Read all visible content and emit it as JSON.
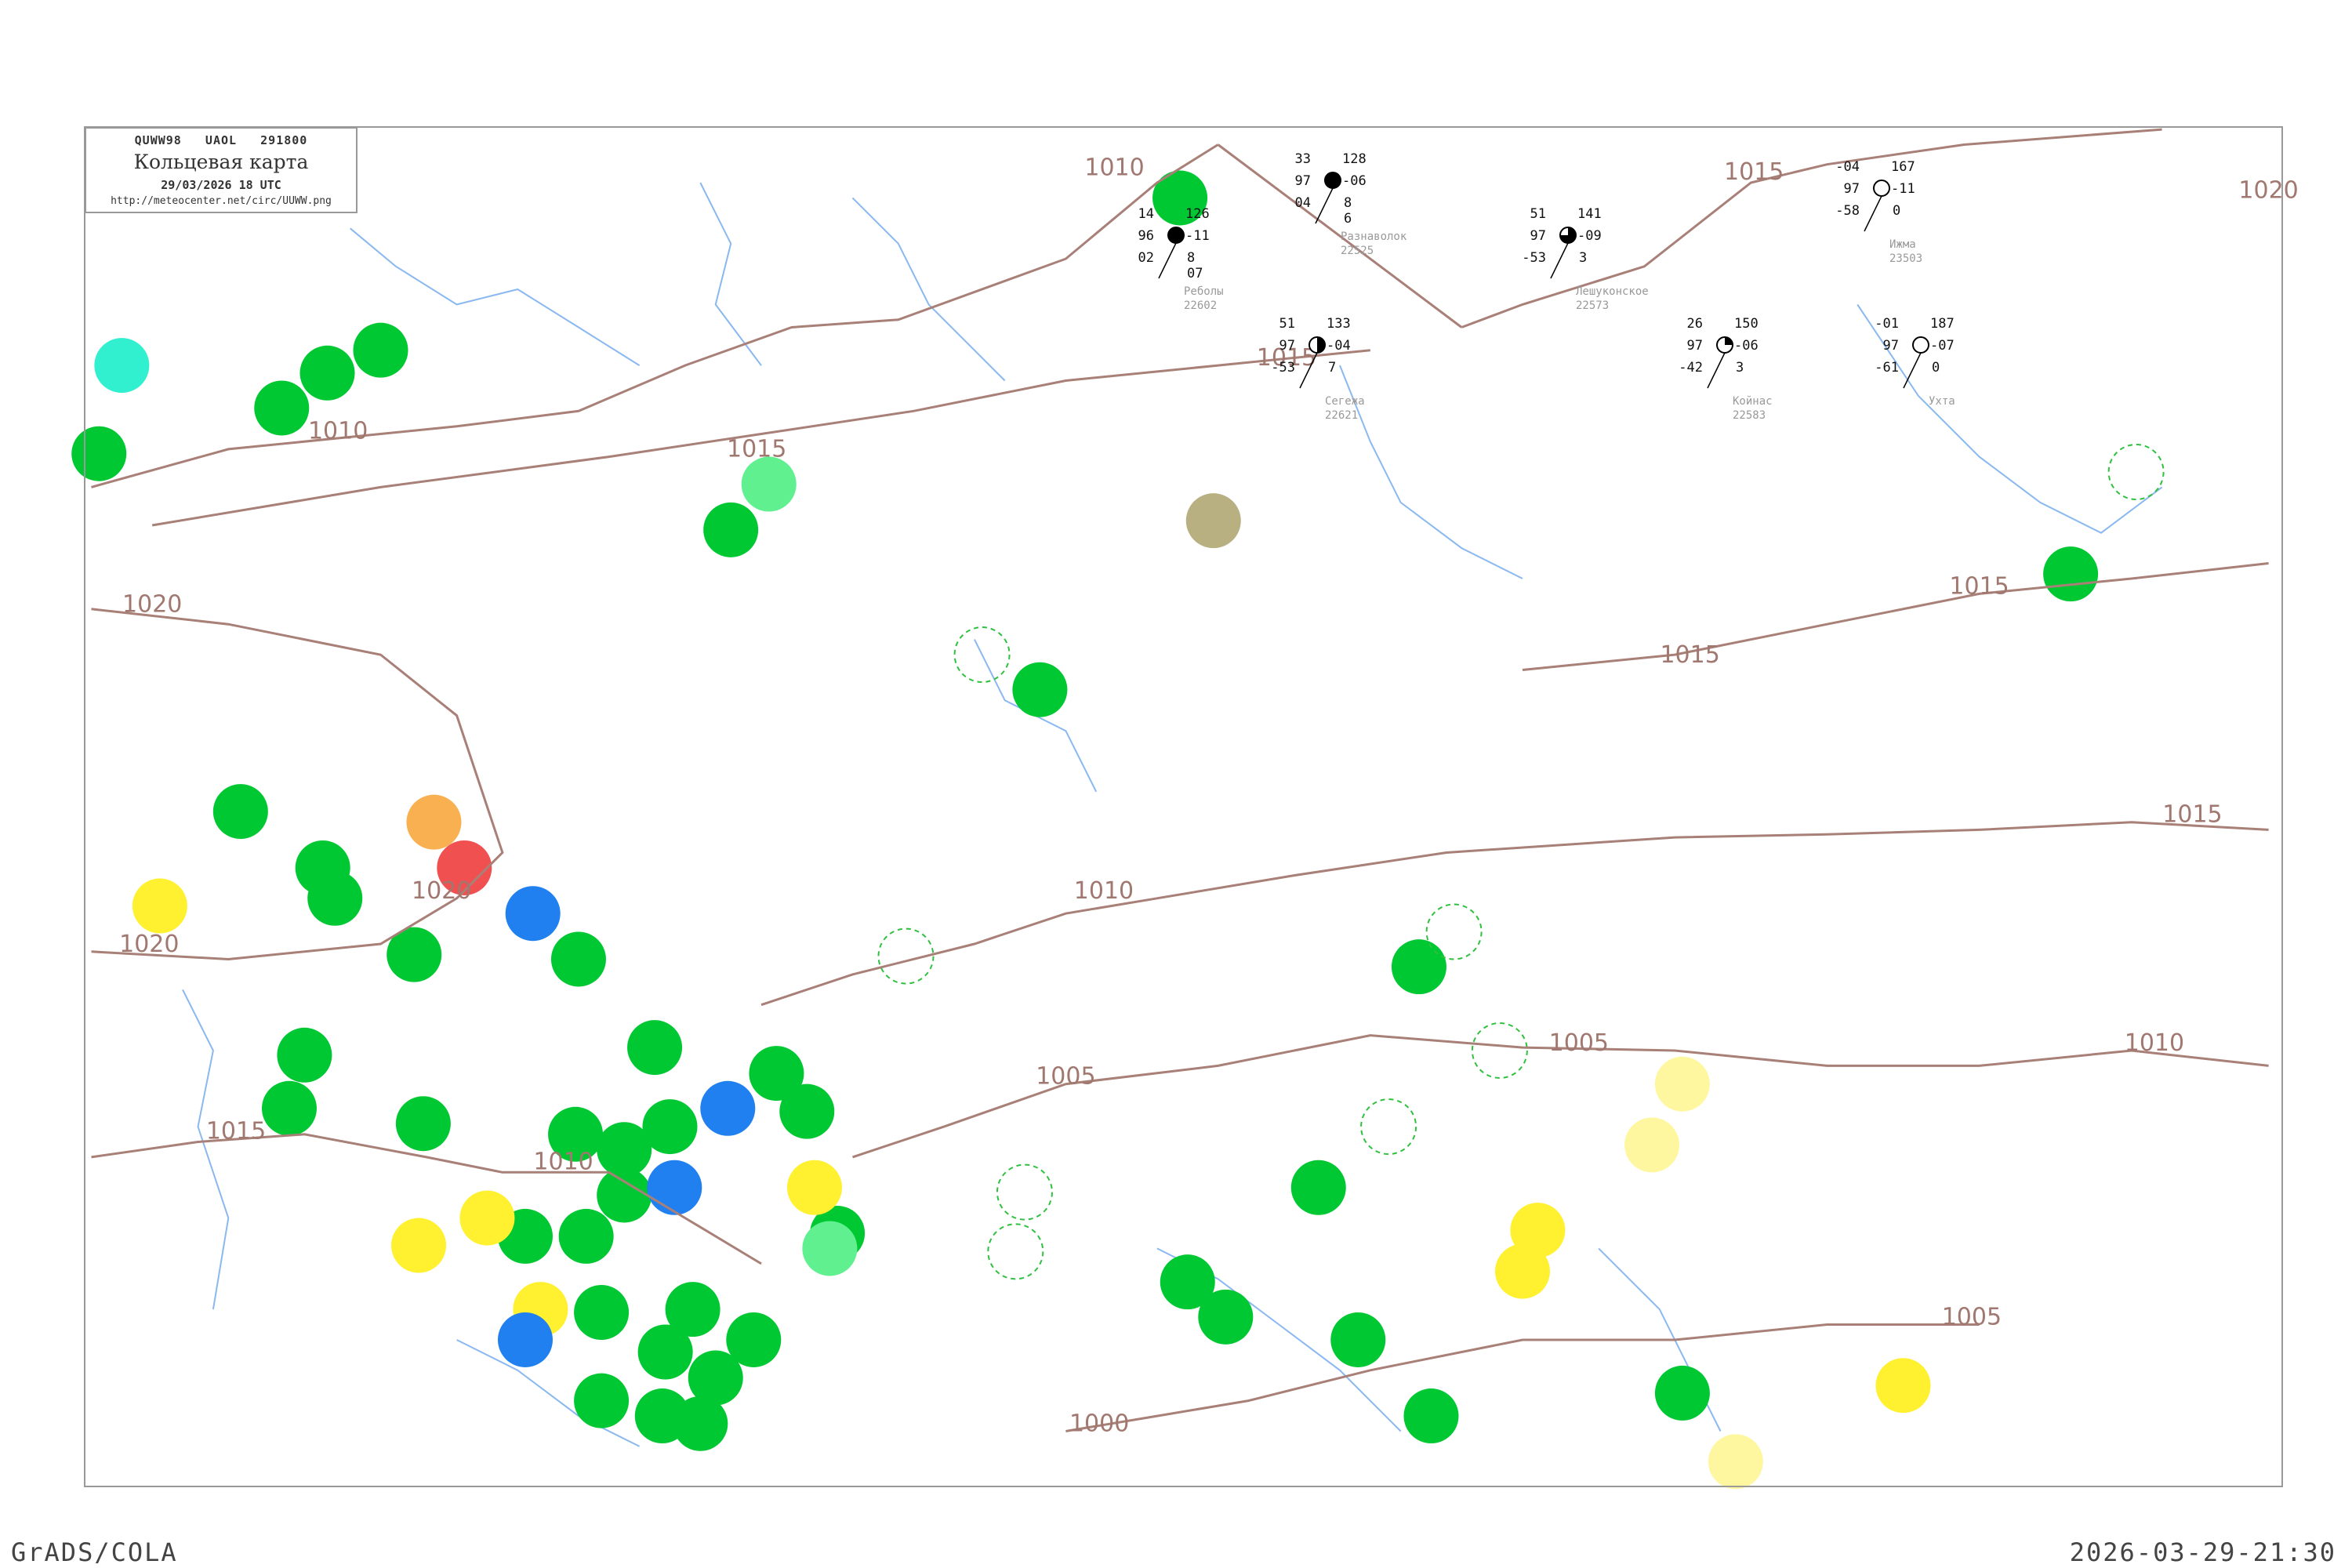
{
  "header": {
    "code": "QUWW98   UAOL   291800",
    "title": "Кольцевая карта",
    "datetime": "29/03/2026 18 UTC",
    "url": "http://meteocenter.net/circ/UUWW.png"
  },
  "footer": {
    "software": "GrADS/COLA",
    "generated": "2026-03-29-21:30"
  },
  "colors": {
    "isobar": "#a88078",
    "river": "#8ab8f0",
    "frame": "#999999",
    "zone_green": "#00c832",
    "zone_yellow": "#fff030",
    "zone_light_yellow": "#fff7a0",
    "zone_cyan": "#30f0d0",
    "zone_light_green": "#60f090",
    "zone_orange": "#f8b050",
    "zone_red": "#f05050",
    "zone_blue": "#2080f0",
    "zone_olive": "#b8b080",
    "zone_dashed": "#30c040"
  },
  "isobar_labels": [
    "1010",
    "1015",
    "1020",
    "1015",
    "1010",
    "1015",
    "1020",
    "1020",
    "1020",
    "1015",
    "1010",
    "1010",
    "1005",
    "1005",
    "1005",
    "1000",
    "1010",
    "1015",
    "1015",
    "1015"
  ],
  "weather_zones": [
    "green",
    "green",
    "green",
    "green",
    "green",
    "green",
    "green",
    "green",
    "green",
    "green",
    "green",
    "green",
    "green",
    "green",
    "green",
    "green",
    "green",
    "green",
    "green",
    "green",
    "green",
    "green",
    "green",
    "green",
    "green",
    "green",
    "green",
    "green",
    "green",
    "green",
    "green",
    "green",
    "green",
    "green",
    "green",
    "green",
    "green",
    "green",
    "green",
    "green",
    "green",
    "cyan",
    "light_green",
    "light_green",
    "yellow",
    "yellow",
    "yellow",
    "yellow",
    "light_yellow",
    "light_yellow",
    "yellow",
    "yellow",
    "yellow",
    "light_yellow",
    "yellow",
    "orange",
    "red",
    "blue",
    "blue",
    "blue",
    "blue",
    "olive",
    "dashed",
    "dashed",
    "dashed",
    "dashed",
    "dashed",
    "dashed",
    "dashed",
    "dashed"
  ],
  "stations": [
    {
      "name": "Реболы",
      "index": "22602",
      "temp": "14",
      "dew": "02",
      "vis": "96",
      "pressure": "126",
      "tendency": "-11",
      "cloud": "8",
      "past": "07",
      "cover": "full"
    },
    {
      "name": "Разнаволок",
      "index": "22525",
      "temp": "33",
      "dew": "04",
      "vis": "97",
      "pressure": "128",
      "tendency": "-06",
      "cloud": "8",
      "past": "6",
      "cover": "full"
    },
    {
      "name": "Сегежа",
      "index": "22621",
      "temp": "51",
      "dew": "-53",
      "vis": "97",
      "pressure": "133",
      "tendency": "-04",
      "cloud": "7",
      "past": "",
      "cover": "half"
    },
    {
      "name": "Лешуконское",
      "index": "22573",
      "temp": "51",
      "dew": "-53",
      "vis": "97",
      "pressure": "141",
      "tendency": "-09",
      "cloud": "3",
      "past": "",
      "cover": "most"
    },
    {
      "name": "Койнас",
      "index": "22583",
      "temp": "26",
      "dew": "-42",
      "vis": "97",
      "pressure": "150",
      "tendency": "-06",
      "cloud": "3",
      "past": "",
      "cover": "quarter"
    },
    {
      "name": "Ижма",
      "index": "23503",
      "temp": "-04",
      "dew": "-58",
      "vis": "97",
      "pressure": "167",
      "tendency": "-11",
      "cloud": "0",
      "past": "",
      "cover": "clear"
    },
    {
      "name": "Ухта",
      "index": "",
      "temp": "-01",
      "dew": "-61",
      "vis": "97",
      "pressure": "187",
      "tendency": "-07",
      "cloud": "0",
      "past": "",
      "cover": "clear"
    }
  ]
}
